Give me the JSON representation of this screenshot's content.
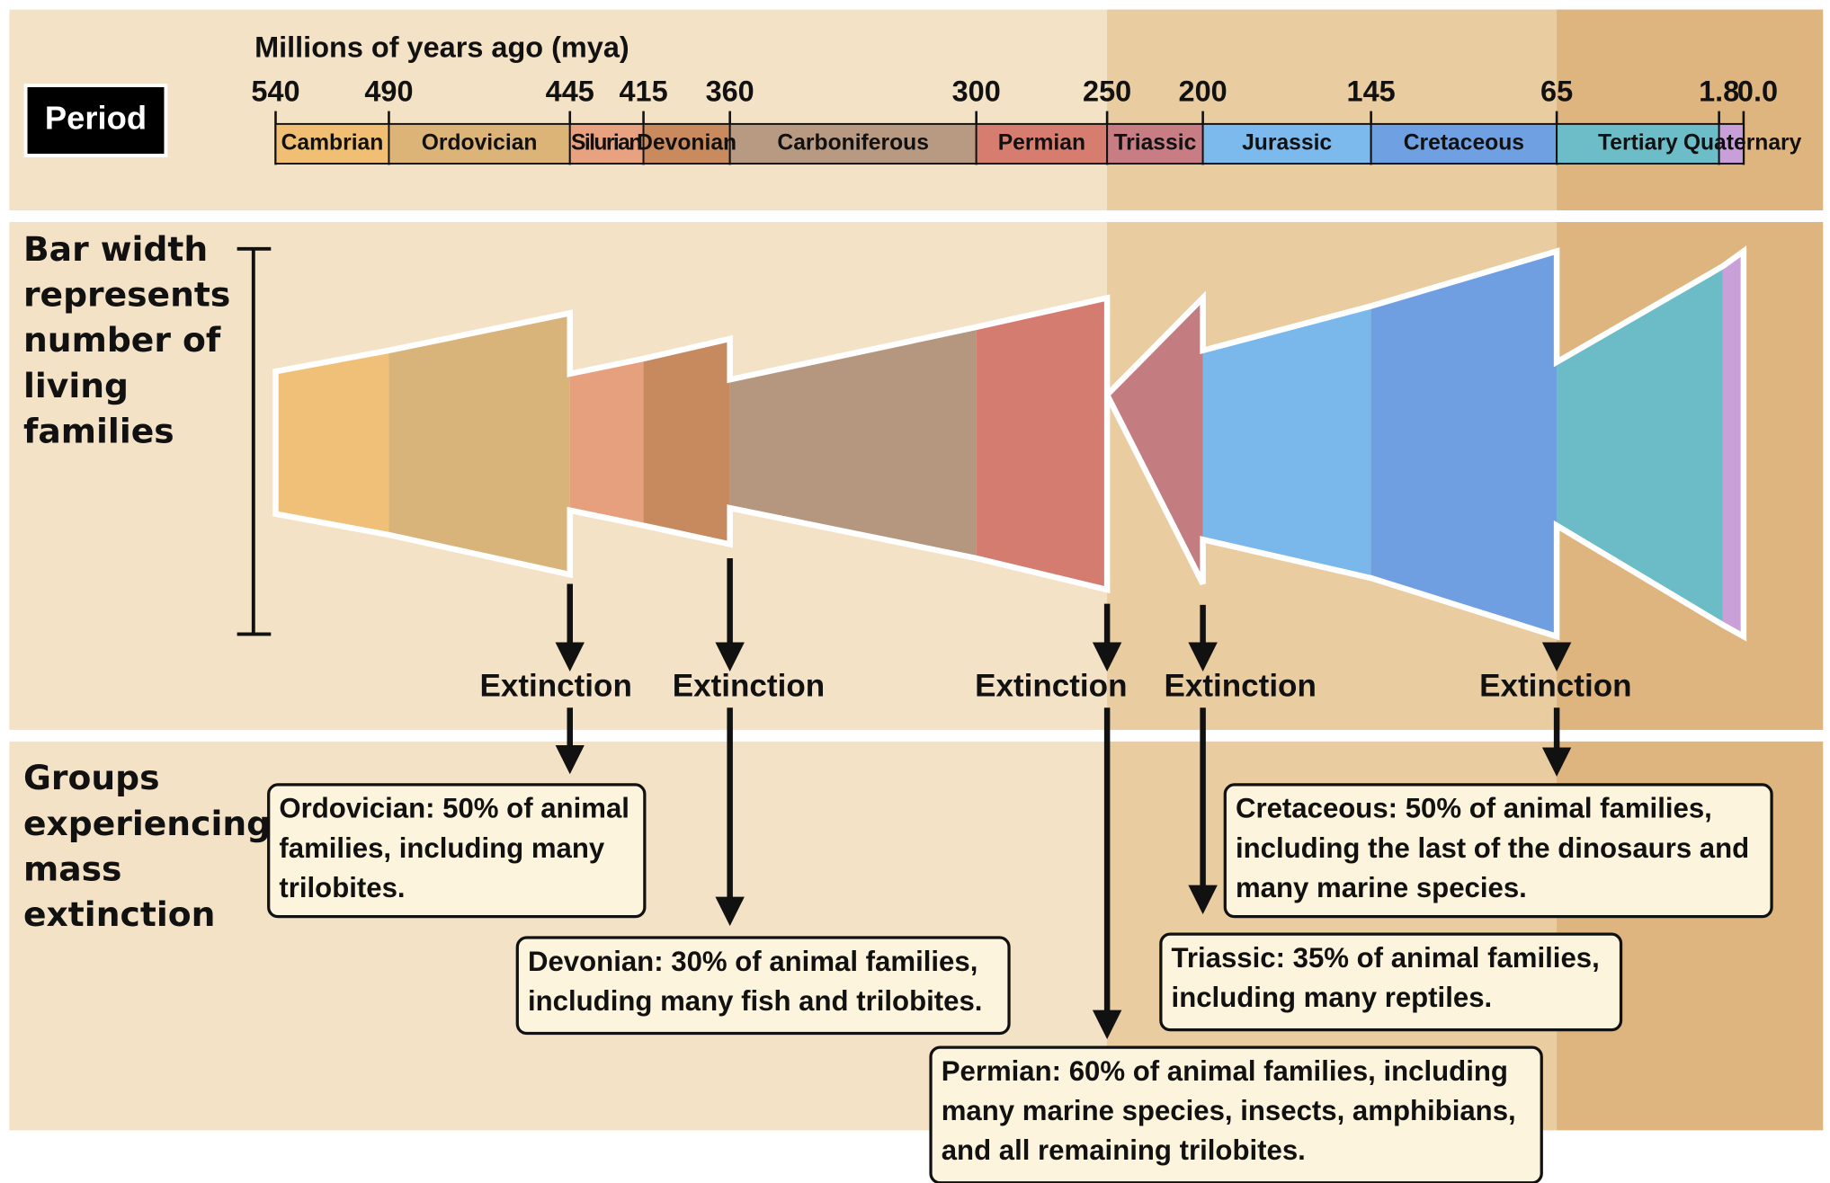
{
  "header": {
    "axis_title": "Millions of years ago (mya)",
    "period_label": "Period",
    "ticks": [
      "540",
      "490",
      "445",
      "415",
      "360",
      "300",
      "250",
      "200",
      "145",
      "65",
      "1.8",
      "0.0"
    ]
  },
  "periods": [
    "Cambrian",
    "Ordovician",
    "Silurian",
    "Devonian",
    "Carboniferous",
    "Permian",
    "Triassic",
    "Jurassic",
    "Cretaceous",
    "Tertiary",
    "Quaternary"
  ],
  "side_labels": {
    "bar_width": [
      "Bar width",
      "represents",
      "number of",
      "living",
      "families"
    ],
    "groups": [
      "Groups",
      "experiencing",
      "mass",
      "extinction"
    ]
  },
  "extinctions": [
    "Extinction",
    "Extinction",
    "Extinction",
    "Extinction",
    "Extinction"
  ],
  "boxes": [
    [
      "Ordovician: 50% of animal",
      "families, including many",
      "trilobites."
    ],
    [
      "Devonian: 30% of animal families,",
      "including many fish and trilobites."
    ],
    [
      "Permian: 60% of animal families, including",
      "many marine species, insects, amphibians,",
      "and all remaining trilobites."
    ],
    [
      "Triassic: 35% of animal families,",
      "including many reptiles."
    ],
    [
      "Cretaceous: 50% of animal families,",
      "including the last of the dinosaurs and",
      "many marine species."
    ]
  ]
}
